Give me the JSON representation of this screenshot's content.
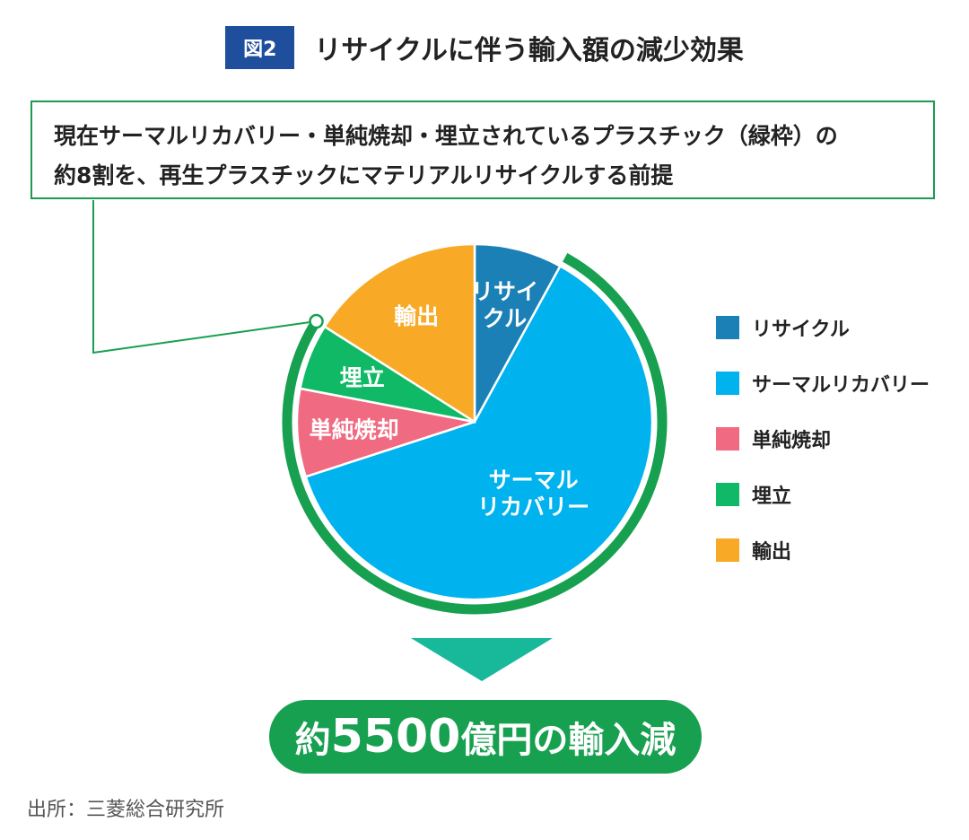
{
  "header": {
    "figure_label": "図2",
    "title": "リサイクルに伴う輸入額の減少効果"
  },
  "note": {
    "line1": "現在サーマルリカバリー・単純焼却・埋立されているプラスチック（緑枠）の",
    "line2": "約8割を、再生プラスチックにマテリアルリサイクルする前提"
  },
  "chart_data": {
    "type": "pie",
    "title": "リサイクルに伴う輸入額の減少効果",
    "slices": [
      {
        "label": "リサイクル",
        "value": 8,
        "color": "#1a80b6"
      },
      {
        "label": "サーマルリカバリー",
        "value": 62,
        "color": "#00b2ee"
      },
      {
        "label": "単純焼却",
        "value": 8,
        "color": "#f06b82"
      },
      {
        "label": "埋立",
        "value": 6,
        "color": "#0fb965"
      },
      {
        "label": "輸出",
        "value": 16,
        "color": "#f8a925"
      }
    ],
    "slice_text": {
      "リサイクル": [
        "リサイ",
        "クル"
      ],
      "サーマルリカバリー": [
        "サーマル",
        "リカバリー"
      ],
      "単純焼却": [
        "単純焼却"
      ],
      "埋立": [
        "埋立"
      ],
      "輸出": [
        "輸出"
      ]
    },
    "highlight": {
      "slices": [
        "サーマルリカバリー",
        "単純焼却",
        "埋立"
      ],
      "color": "#17a04f"
    },
    "legend_position": "right"
  },
  "result": {
    "prefix": "約",
    "number": "5500",
    "suffix": "億円の輸入減"
  },
  "source": "出所：三菱総合研究所"
}
